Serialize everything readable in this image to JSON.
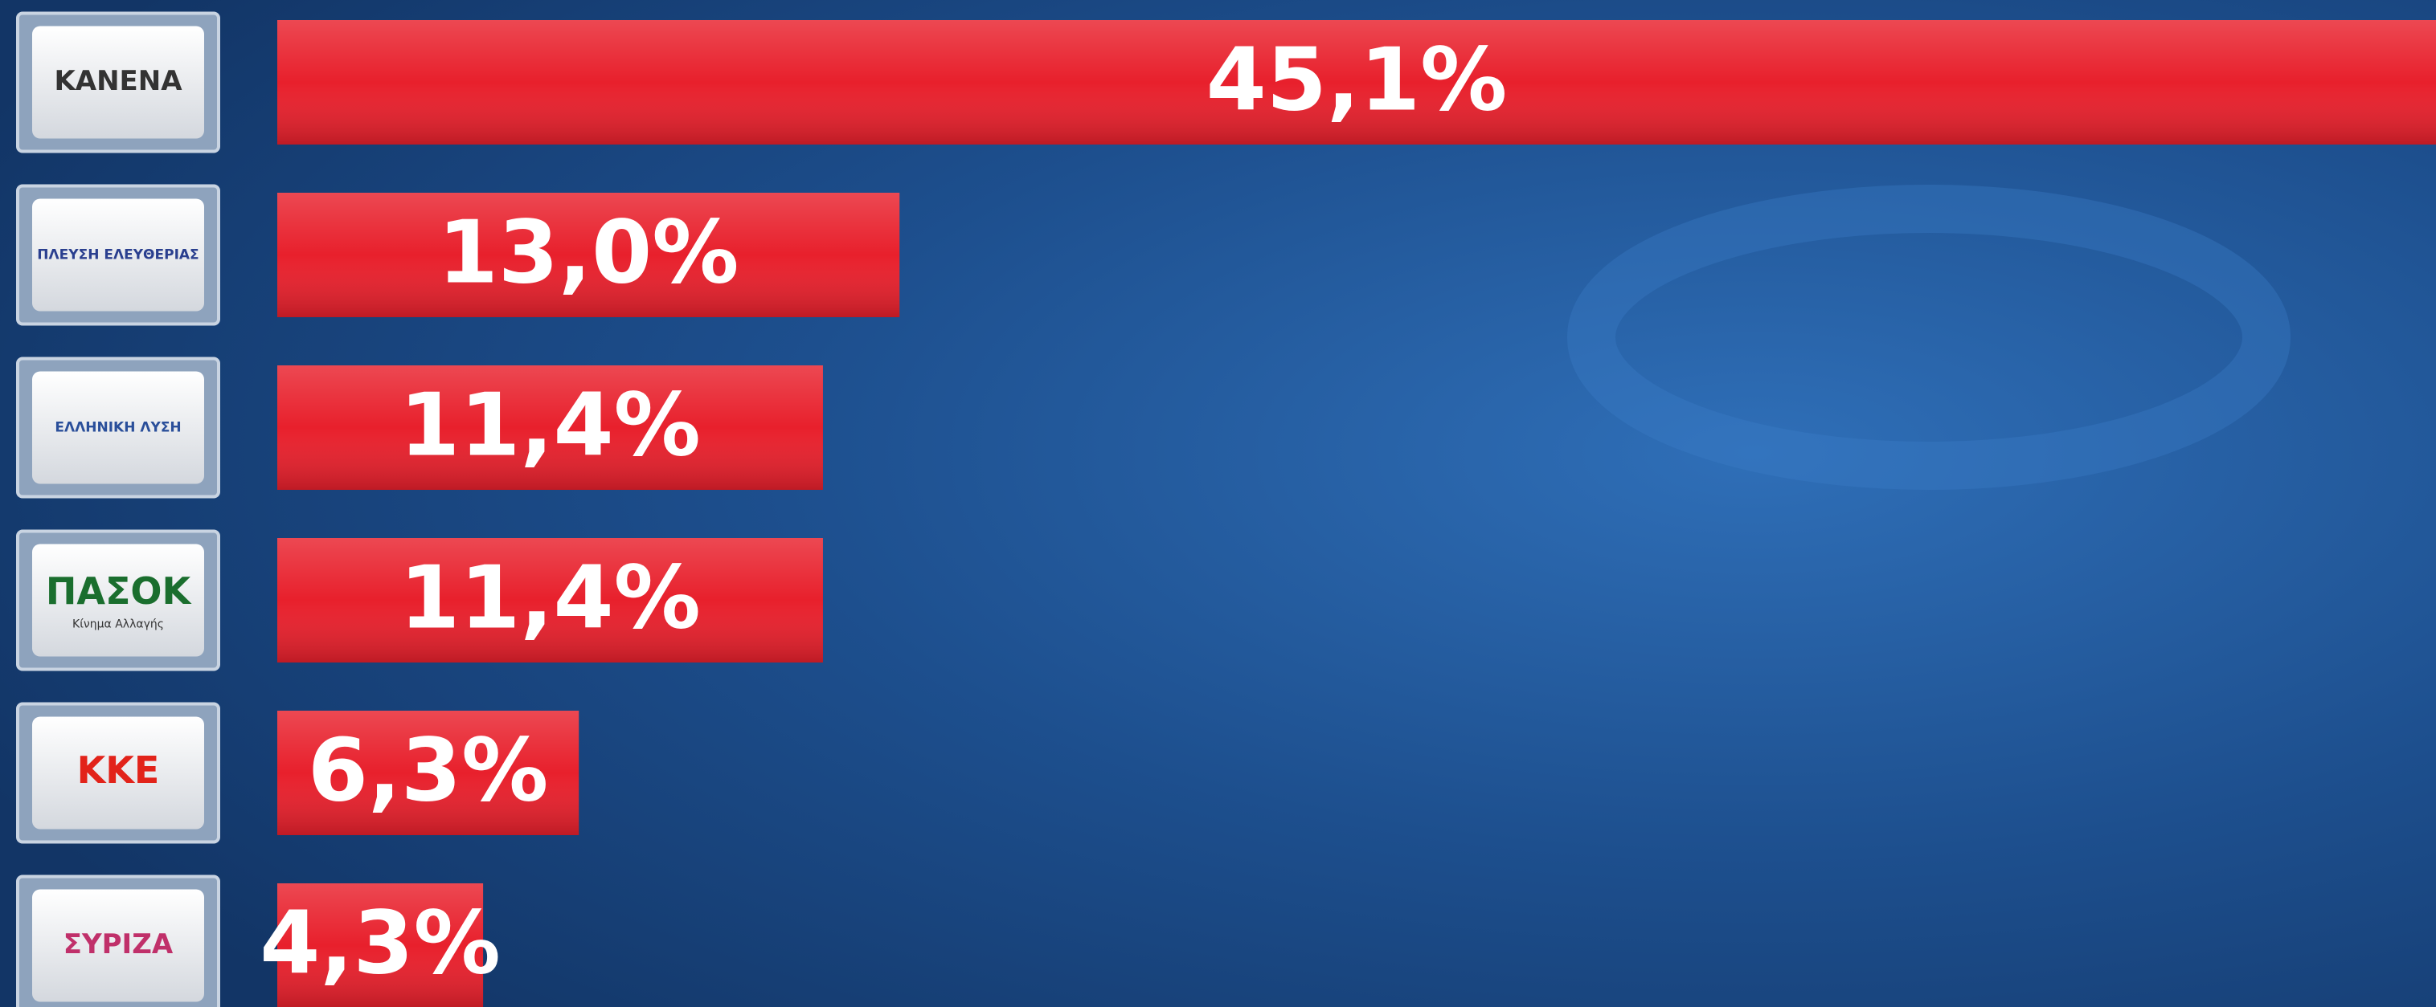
{
  "chart_data": {
    "type": "bar",
    "categories": [
      "ΚΑΝΕΝΑ",
      "ΠΛΕΥΣΗ ΕΛΕΥΘΕΡΙΑΣ",
      "ΕΛΛΗΝΙΚΗ ΛΥΣΗ",
      "ΠΑΣΟΚ",
      "ΚΚΕ",
      "ΣΥΡΙΖΑ"
    ],
    "category_subtitles": [
      null,
      null,
      null,
      "Κίνημα Αλλαγής",
      null,
      null
    ],
    "values": [
      45.1,
      13.0,
      11.4,
      11.4,
      6.3,
      4.3
    ],
    "value_labels": [
      "45,1%",
      "13,0%",
      "11,4%",
      "11,4%",
      "6,3%",
      "4,3%"
    ],
    "color": "#e8202c"
  }
}
